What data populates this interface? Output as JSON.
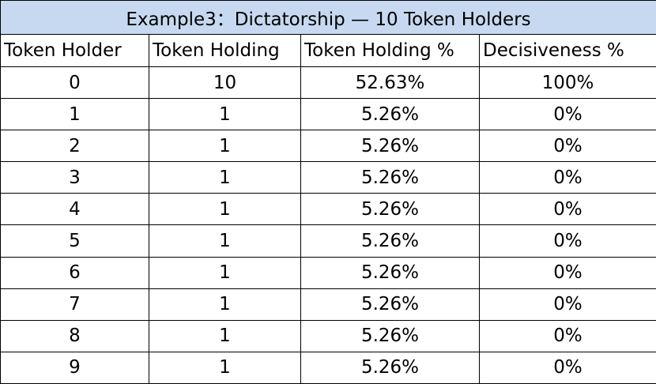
{
  "table": {
    "title": "Example3：Dictatorship — 10 Token Holders",
    "header": [
      "Token Holder",
      "Token Holding",
      "Token Holding %",
      "Decisiveness %"
    ],
    "rows": [
      [
        "0",
        "10",
        "52.63%",
        "100%"
      ],
      [
        "1",
        "1",
        "5.26%",
        "0%"
      ],
      [
        "2",
        "1",
        "5.26%",
        "0%"
      ],
      [
        "3",
        "1",
        "5.26%",
        "0%"
      ],
      [
        "4",
        "1",
        "5.26%",
        "0%"
      ],
      [
        "5",
        "1",
        "5.26%",
        "0%"
      ],
      [
        "6",
        "1",
        "5.26%",
        "0%"
      ],
      [
        "7",
        "1",
        "5.26%",
        "0%"
      ],
      [
        "8",
        "1",
        "5.26%",
        "0%"
      ],
      [
        "9",
        "1",
        "5.26%",
        "0%"
      ]
    ]
  }
}
